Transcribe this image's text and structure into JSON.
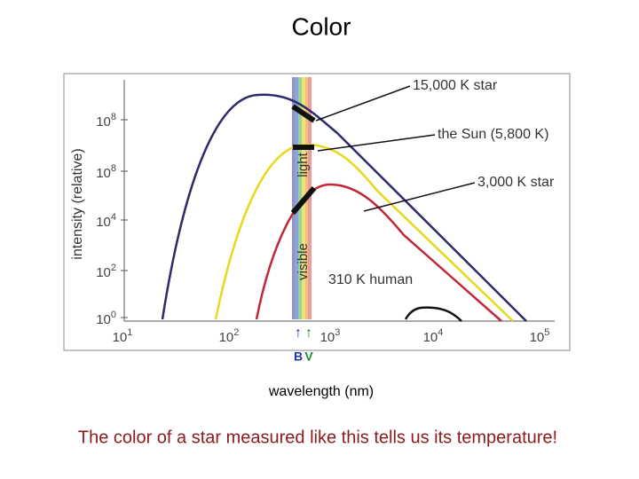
{
  "title": "Color",
  "figure": {
    "y_axis_label": "intensity (relative)",
    "y_ticks": [
      {
        "base": "10",
        "exponent": "0"
      },
      {
        "base": "10",
        "exponent": "2"
      },
      {
        "base": "10",
        "exponent": "4"
      },
      {
        "base": "10",
        "exponent": "8"
      },
      {
        "base": "10",
        "exponent": "8"
      }
    ],
    "x_ticks": [
      {
        "base": "10",
        "exponent": "1"
      },
      {
        "base": "10",
        "exponent": "2"
      },
      {
        "base": "10",
        "exponent": "3"
      },
      {
        "base": "10",
        "exponent": "4"
      },
      {
        "base": "10",
        "exponent": "5"
      }
    ],
    "band_label": [
      "visible",
      "light"
    ],
    "annotations": [
      "15,000 K star",
      "the Sun (5,800 K)",
      "3,000 K star",
      "310 K human"
    ],
    "markers": {
      "arrows": [
        "↑",
        "↑"
      ],
      "letters": [
        "B",
        "V"
      ]
    },
    "x_axis_label": "wavelength (nm)"
  },
  "caption": "The color of a star measured like this tells us its temperature!"
}
